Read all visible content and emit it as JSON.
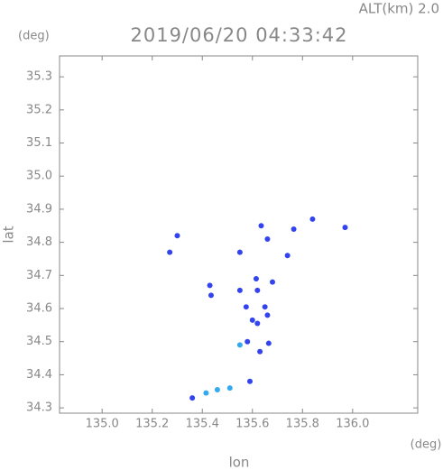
{
  "chart_data": {
    "type": "scatter",
    "title": "2019/06/20 04:33:42",
    "subtitle": "ALT(km) 2.0",
    "y_unit": "(deg)",
    "x_unit": "(deg)",
    "x_label": "lon",
    "y_label": "lat",
    "xlim": [
      134.83,
      136.26
    ],
    "ylim": [
      34.284,
      35.363
    ],
    "xticks": [
      {
        "value": 135.0,
        "label": "135.0"
      },
      135.2,
      135.4,
      135.6,
      135.8,
      {
        "value": 136.0,
        "label": "136.0"
      }
    ],
    "yticks": [
      34.3,
      34.4,
      34.5,
      34.6,
      34.7,
      34.8,
      34.9,
      {
        "value": 35.0,
        "label": "35.0"
      },
      35.1,
      35.2,
      35.3
    ],
    "series": [
      {
        "color": "#3344ee",
        "x": [
          135.27,
          135.3,
          135.55,
          135.635,
          135.66,
          135.765,
          135.84,
          135.97,
          135.43,
          135.435,
          135.55,
          135.575,
          135.62,
          135.68,
          135.65,
          135.6,
          135.58,
          135.62,
          135.665,
          135.63,
          135.59,
          135.36,
          135.74,
          135.615,
          135.66
        ],
        "values": [
          34.77,
          34.82,
          34.77,
          34.85,
          34.81,
          34.84,
          34.87,
          34.845,
          34.67,
          34.64,
          34.655,
          34.605,
          34.655,
          34.68,
          34.605,
          34.565,
          34.5,
          34.555,
          34.495,
          34.47,
          34.38,
          34.33,
          34.76,
          34.69,
          34.58
        ]
      },
      {
        "color": "#33aaee",
        "x": [
          135.55,
          135.51,
          135.46,
          135.415
        ],
        "values": [
          34.49,
          34.36,
          34.355,
          34.345
        ]
      }
    ]
  }
}
